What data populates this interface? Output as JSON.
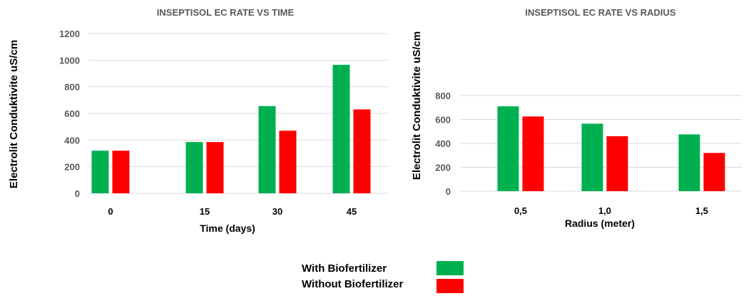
{
  "colors": {
    "with": "#00b050",
    "without": "#ff0000",
    "grid": "#d9d9d9",
    "text": "#595959"
  },
  "legend": {
    "items": [
      {
        "label": "With Biofertilizer",
        "color": "#00b050"
      },
      {
        "label": "Without Biofertilizer",
        "color": "#ff0000"
      }
    ]
  },
  "chart_data": [
    {
      "type": "bar",
      "title": "INSEPTISOL EC RATE VS TIME",
      "xlabel": "Time (days)",
      "ylabel": "Electrolit Conduktivite  uS/cm",
      "categories": [
        "0",
        "15",
        "30",
        "45"
      ],
      "ylim": [
        0,
        1200
      ],
      "yticks": [
        0,
        200,
        400,
        600,
        800,
        1000,
        1200
      ],
      "grid": true,
      "series": [
        {
          "name": "With Biofertilizer",
          "values": [
            320,
            385,
            655,
            965
          ]
        },
        {
          "name": "Without Biofertilizer",
          "values": [
            320,
            385,
            470,
            630
          ]
        }
      ]
    },
    {
      "type": "bar",
      "title": "INSEPTISOL EC RATE VS  RADIUS",
      "xlabel": "Radius (meter)",
      "ylabel": "Electrolit Conduktivite  uS/cm",
      "categories": [
        "0,5",
        "1,0",
        "1,5"
      ],
      "ylim": [
        0,
        800
      ],
      "yticks": [
        0,
        200,
        400,
        600,
        800
      ],
      "grid": true,
      "series": [
        {
          "name": "With Biofertilizer",
          "values": [
            710,
            565,
            475
          ]
        },
        {
          "name": "Without Biofertilizer",
          "values": [
            625,
            460,
            320
          ]
        }
      ]
    }
  ]
}
